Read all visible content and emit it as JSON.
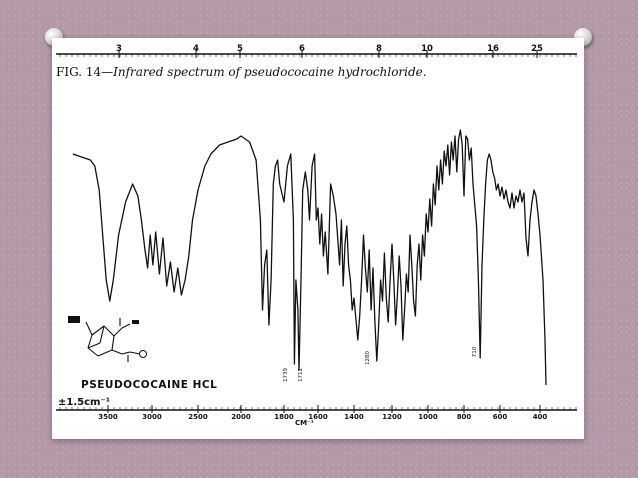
{
  "caption": {
    "figure_tag": "FIG. 14—",
    "description": "Infrared spectrum of pseudococaine hydrochloride."
  },
  "compound_label": "PSEUDOCOCAINE HCL",
  "scale_label": "±1.5cm⁻¹",
  "unit_label": "CM⁻¹",
  "chart_data": {
    "type": "line",
    "title": "FIG. 14—Infrared spectrum of pseudococaine hydrochloride.",
    "xlabel": "CM⁻¹",
    "top_axis_ticks": [
      "3",
      "4",
      "5",
      "6",
      "8",
      "10",
      "16",
      "25"
    ],
    "bottom_axis_ticks": [
      "3500",
      "3000",
      "2500",
      "2000",
      "1800",
      "1600",
      "1400",
      "1200",
      "1000",
      "800",
      "600",
      "400"
    ],
    "peak_annotations": [
      "1739",
      "1712",
      "1280",
      "710"
    ],
    "series": [
      {
        "values": [
          [
            3900,
            0.82
          ],
          [
            3800,
            0.81
          ],
          [
            3700,
            0.8
          ],
          [
            3650,
            0.78
          ],
          [
            3600,
            0.7
          ],
          [
            3560,
            0.55
          ],
          [
            3520,
            0.4
          ],
          [
            3480,
            0.33
          ],
          [
            3440,
            0.4
          ],
          [
            3380,
            0.55
          ],
          [
            3300,
            0.66
          ],
          [
            3220,
            0.72
          ],
          [
            3160,
            0.68
          ],
          [
            3120,
            0.6
          ],
          [
            3080,
            0.5
          ],
          [
            3050,
            0.44
          ],
          [
            3020,
            0.55
          ],
          [
            2990,
            0.45
          ],
          [
            2960,
            0.56
          ],
          [
            2920,
            0.42
          ],
          [
            2880,
            0.54
          ],
          [
            2840,
            0.38
          ],
          [
            2800,
            0.46
          ],
          [
            2760,
            0.36
          ],
          [
            2720,
            0.44
          ],
          [
            2680,
            0.35
          ],
          [
            2640,
            0.4
          ],
          [
            2600,
            0.48
          ],
          [
            2560,
            0.6
          ],
          [
            2500,
            0.7
          ],
          [
            2420,
            0.78
          ],
          [
            2350,
            0.82
          ],
          [
            2250,
            0.85
          ],
          [
            2150,
            0.86
          ],
          [
            2050,
            0.87
          ],
          [
            2000,
            0.88
          ],
          [
            1960,
            0.86
          ],
          [
            1930,
            0.8
          ],
          [
            1910,
            0.6
          ],
          [
            1900,
            0.3
          ],
          [
            1890,
            0.45
          ],
          [
            1880,
            0.5
          ],
          [
            1870,
            0.25
          ],
          [
            1860,
            0.4
          ],
          [
            1850,
            0.72
          ],
          [
            1840,
            0.78
          ],
          [
            1830,
            0.8
          ],
          [
            1820,
            0.72
          ],
          [
            1800,
            0.66
          ],
          [
            1780,
            0.78
          ],
          [
            1760,
            0.82
          ],
          [
            1745,
            0.6
          ],
          [
            1739,
            0.12
          ],
          [
            1730,
            0.4
          ],
          [
            1718,
            0.3
          ],
          [
            1712,
            0.1
          ],
          [
            1700,
            0.4
          ],
          [
            1690,
            0.7
          ],
          [
            1675,
            0.76
          ],
          [
            1660,
            0.7
          ],
          [
            1650,
            0.6
          ],
          [
            1635,
            0.78
          ],
          [
            1620,
            0.82
          ],
          [
            1610,
            0.6
          ],
          [
            1600,
            0.64
          ],
          [
            1590,
            0.52
          ],
          [
            1580,
            0.62
          ],
          [
            1570,
            0.48
          ],
          [
            1560,
            0.56
          ],
          [
            1545,
            0.42
          ],
          [
            1530,
            0.72
          ],
          [
            1515,
            0.68
          ],
          [
            1500,
            0.62
          ],
          [
            1480,
            0.45
          ],
          [
            1470,
            0.6
          ],
          [
            1460,
            0.38
          ],
          [
            1450,
            0.52
          ],
          [
            1440,
            0.58
          ],
          [
            1430,
            0.45
          ],
          [
            1420,
            0.4
          ],
          [
            1410,
            0.3
          ],
          [
            1400,
            0.34
          ],
          [
            1380,
            0.2
          ],
          [
            1370,
            0.28
          ],
          [
            1360,
            0.4
          ],
          [
            1350,
            0.55
          ],
          [
            1340,
            0.44
          ],
          [
            1330,
            0.36
          ],
          [
            1320,
            0.5
          ],
          [
            1310,
            0.3
          ],
          [
            1300,
            0.44
          ],
          [
            1290,
            0.26
          ],
          [
            1280,
            0.13
          ],
          [
            1270,
            0.25
          ],
          [
            1260,
            0.4
          ],
          [
            1250,
            0.33
          ],
          [
            1240,
            0.49
          ],
          [
            1230,
            0.34
          ],
          [
            1220,
            0.26
          ],
          [
            1210,
            0.4
          ],
          [
            1200,
            0.52
          ],
          [
            1190,
            0.4
          ],
          [
            1180,
            0.25
          ],
          [
            1170,
            0.35
          ],
          [
            1160,
            0.48
          ],
          [
            1150,
            0.38
          ],
          [
            1140,
            0.2
          ],
          [
            1130,
            0.3
          ],
          [
            1120,
            0.42
          ],
          [
            1110,
            0.36
          ],
          [
            1100,
            0.55
          ],
          [
            1090,
            0.45
          ],
          [
            1080,
            0.33
          ],
          [
            1070,
            0.28
          ],
          [
            1060,
            0.45
          ],
          [
            1050,
            0.52
          ],
          [
            1040,
            0.4
          ],
          [
            1030,
            0.55
          ],
          [
            1020,
            0.48
          ],
          [
            1010,
            0.62
          ],
          [
            1000,
            0.56
          ],
          [
            990,
            0.67
          ],
          [
            980,
            0.58
          ],
          [
            970,
            0.72
          ],
          [
            960,
            0.65
          ],
          [
            950,
            0.78
          ],
          [
            940,
            0.7
          ],
          [
            930,
            0.8
          ],
          [
            920,
            0.72
          ],
          [
            910,
            0.83
          ],
          [
            900,
            0.78
          ],
          [
            890,
            0.85
          ],
          [
            880,
            0.75
          ],
          [
            870,
            0.86
          ],
          [
            860,
            0.8
          ],
          [
            850,
            0.88
          ],
          [
            840,
            0.76
          ],
          [
            830,
            0.87
          ],
          [
            820,
            0.9
          ],
          [
            810,
            0.85
          ],
          [
            800,
            0.68
          ],
          [
            790,
            0.88
          ],
          [
            780,
            0.87
          ],
          [
            770,
            0.8
          ],
          [
            760,
            0.84
          ],
          [
            750,
            0.72
          ],
          [
            740,
            0.65
          ],
          [
            730,
            0.58
          ],
          [
            720,
            0.4
          ],
          [
            710,
            0.14
          ],
          [
            700,
            0.45
          ],
          [
            690,
            0.6
          ],
          [
            680,
            0.72
          ],
          [
            670,
            0.8
          ],
          [
            660,
            0.82
          ],
          [
            650,
            0.8
          ],
          [
            640,
            0.76
          ],
          [
            630,
            0.74
          ],
          [
            620,
            0.7
          ],
          [
            610,
            0.72
          ],
          [
            600,
            0.68
          ],
          [
            590,
            0.71
          ],
          [
            580,
            0.67
          ],
          [
            570,
            0.7
          ],
          [
            560,
            0.66
          ],
          [
            550,
            0.64
          ],
          [
            540,
            0.69
          ],
          [
            530,
            0.64
          ],
          [
            520,
            0.68
          ],
          [
            510,
            0.66
          ],
          [
            500,
            0.7
          ],
          [
            490,
            0.66
          ],
          [
            480,
            0.69
          ],
          [
            470,
            0.54
          ],
          [
            460,
            0.48
          ],
          [
            450,
            0.6
          ],
          [
            440,
            0.66
          ],
          [
            430,
            0.7
          ],
          [
            420,
            0.68
          ],
          [
            410,
            0.62
          ],
          [
            400,
            0.55
          ],
          [
            385,
            0.4
          ],
          [
            375,
            0.2
          ],
          [
            370,
            0.05
          ]
        ]
      }
    ]
  }
}
